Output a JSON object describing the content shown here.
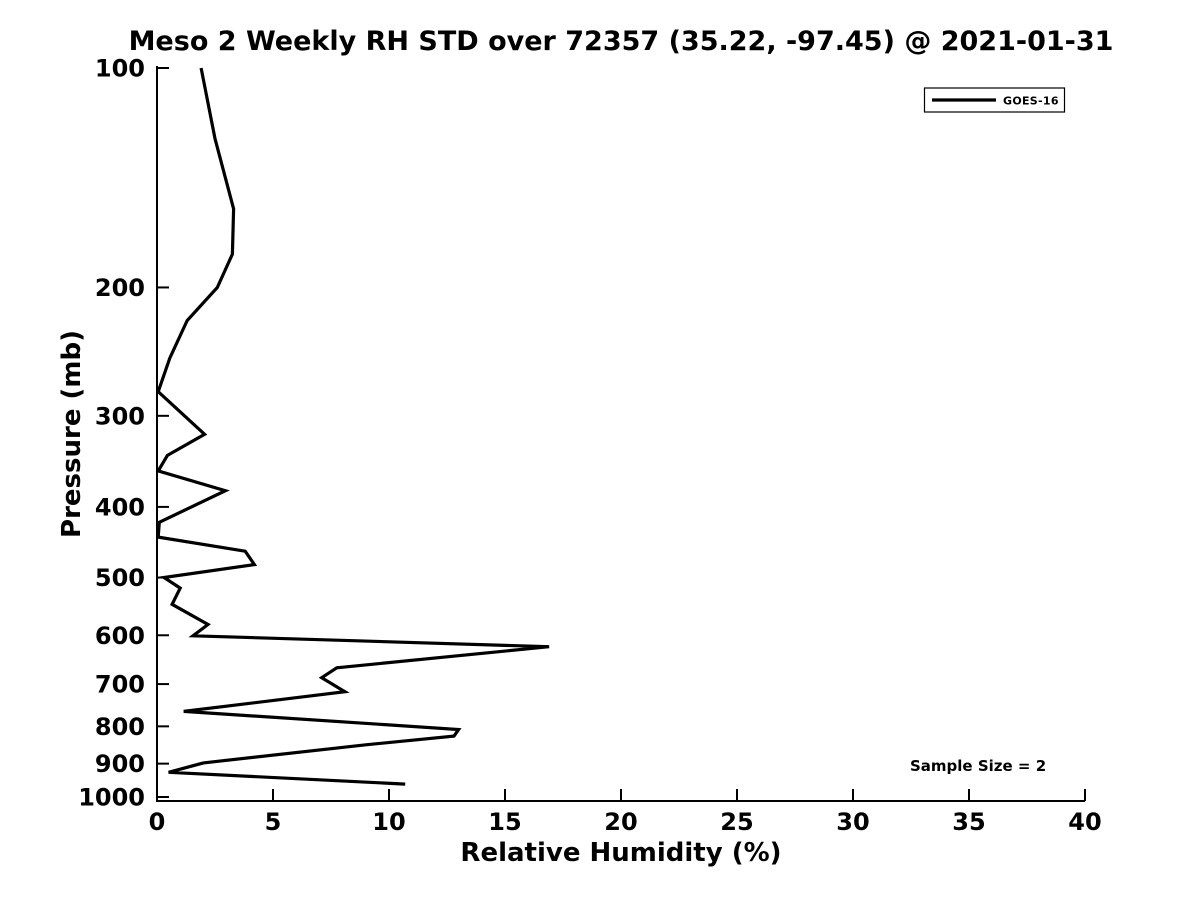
{
  "chart_data": {
    "type": "line",
    "title": "Meso 2 Weekly RH STD over 72357 (35.22, -97.45) @ 2021-01-31",
    "xlabel": "Relative Humidity (%)",
    "ylabel": "Pressure (mb)",
    "xlim": [
      0,
      40
    ],
    "ylim": [
      100,
      1000
    ],
    "x_scale": "linear",
    "y_scale": "log",
    "y_inverted": true,
    "grid": false,
    "x_ticks": [
      0,
      5,
      10,
      15,
      20,
      25,
      30,
      35,
      40
    ],
    "y_ticks": [
      100,
      200,
      300,
      400,
      500,
      600,
      700,
      800,
      900,
      1000
    ],
    "legend": {
      "position": "top-right",
      "entries": [
        "GOES-16"
      ]
    },
    "annotations": [
      {
        "text": "Sample Size = 2",
        "x_rh": 32.5,
        "y_pressure": 905
      }
    ],
    "colors": {
      "line": "#000000",
      "axis": "#000000",
      "text": "#000000",
      "background": "#ffffff",
      "legend_border": "#000000",
      "legend_fill": "#ffffff"
    },
    "series": [
      {
        "name": "GOES-16",
        "color": "#000000",
        "points_rh_pressure": [
          [
            1.9,
            100
          ],
          [
            2.5,
            125
          ],
          [
            3.3,
            156
          ],
          [
            3.25,
            180
          ],
          [
            2.6,
            200
          ],
          [
            1.3,
            222
          ],
          [
            0.55,
            250
          ],
          [
            0.05,
            278
          ],
          [
            2.05,
            318
          ],
          [
            0.45,
            340
          ],
          [
            0.05,
            357
          ],
          [
            2.95,
            380
          ],
          [
            0.1,
            420
          ],
          [
            0.05,
            440
          ],
          [
            3.8,
            460
          ],
          [
            4.2,
            480
          ],
          [
            0.3,
            500
          ],
          [
            1.0,
            517
          ],
          [
            0.65,
            544
          ],
          [
            2.2,
            580
          ],
          [
            1.55,
            601
          ],
          [
            16.9,
            622
          ],
          [
            7.75,
            665
          ],
          [
            7.1,
            686
          ],
          [
            8.1,
            717
          ],
          [
            1.15,
            763
          ],
          [
            13.0,
            808
          ],
          [
            12.8,
            825
          ],
          [
            9.0,
            848
          ],
          [
            2.0,
            898
          ],
          [
            0.5,
            925
          ],
          [
            10.7,
            960
          ]
        ]
      }
    ]
  }
}
